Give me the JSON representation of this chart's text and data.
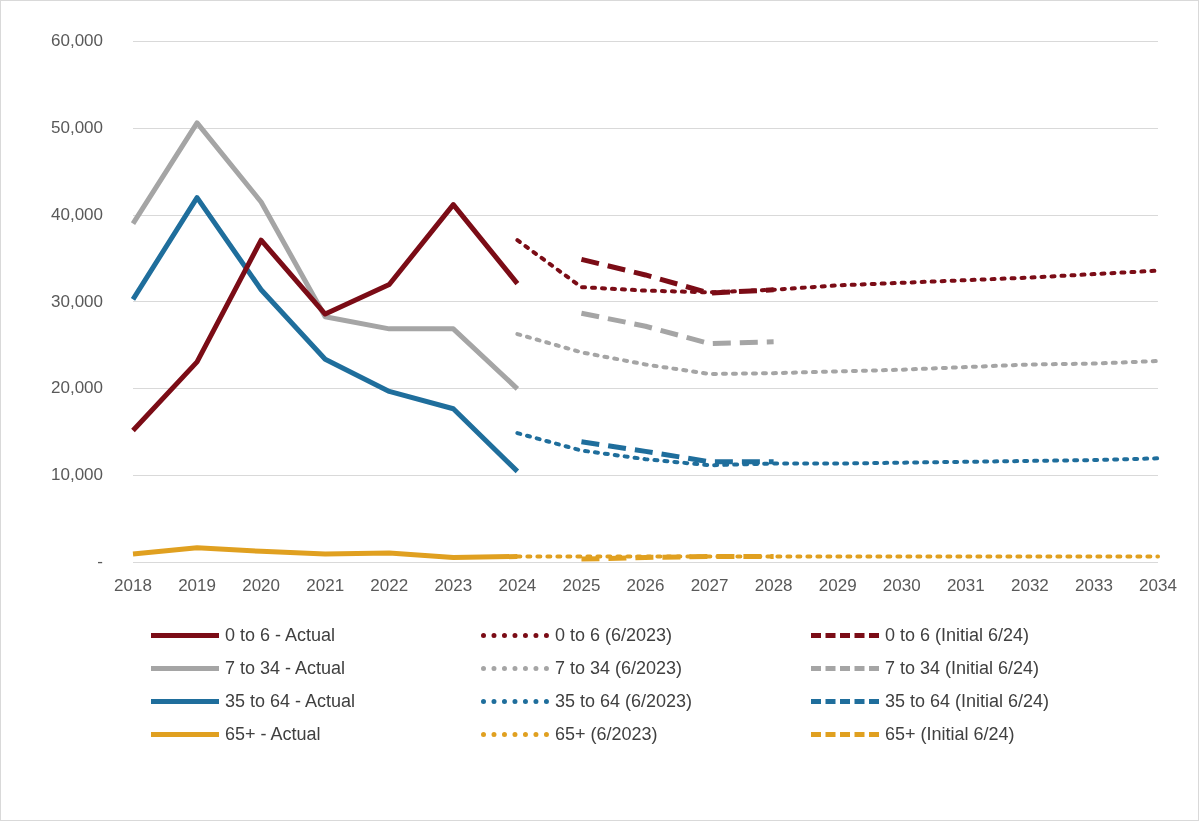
{
  "chart_data": {
    "type": "line",
    "categories": [
      "2018",
      "2019",
      "2020",
      "2021",
      "2022",
      "2023",
      "2024",
      "2025",
      "2026",
      "2027",
      "2028",
      "2029",
      "2030",
      "2031",
      "2032",
      "2033",
      "2034"
    ],
    "ylim": [
      0,
      60000
    ],
    "yticks": [
      {
        "value": 0,
        "label": "-"
      },
      {
        "value": 10000,
        "label": "10,000"
      },
      {
        "value": 20000,
        "label": "20,000"
      },
      {
        "value": 30000,
        "label": "30,000"
      },
      {
        "value": 40000,
        "label": "40,000"
      },
      {
        "value": 50000,
        "label": "50,000"
      },
      {
        "value": 60000,
        "label": "60,000"
      }
    ],
    "grid": "y",
    "legend": "bottom",
    "marker": "none",
    "series": [
      {
        "name": "0 to 6 - Actual",
        "color": "#7b0c16",
        "line_style": "solid",
        "values": [
          15200,
          23100,
          37100,
          28600,
          32000,
          41200,
          32100,
          null,
          null,
          null,
          null,
          null,
          null,
          null,
          null,
          null,
          null
        ]
      },
      {
        "name": "0 to 6 (6/2023)",
        "color": "#7b0c16",
        "line_style": "dotted",
        "values": [
          null,
          null,
          null,
          null,
          null,
          null,
          37100,
          31700,
          31300,
          31100,
          31400,
          31900,
          32200,
          32500,
          32800,
          33200,
          33600
        ]
      },
      {
        "name": "0 to 6 (Initial 6/24)",
        "color": "#7b0c16",
        "line_style": "dashed",
        "values": [
          null,
          null,
          null,
          null,
          null,
          null,
          null,
          34900,
          33100,
          31000,
          31400,
          null,
          null,
          null,
          null,
          null,
          null
        ]
      },
      {
        "name": "7 to 34 - Actual",
        "color": "#a5a5a5",
        "line_style": "solid",
        "values": [
          39000,
          50600,
          41500,
          28300,
          26900,
          26900,
          20000,
          null,
          null,
          null,
          null,
          null,
          null,
          null,
          null,
          null,
          null
        ]
      },
      {
        "name": "7 to 34 (6/2023)",
        "color": "#a5a5a5",
        "line_style": "dotted",
        "values": [
          null,
          null,
          null,
          null,
          null,
          null,
          26300,
          24200,
          22800,
          21700,
          21800,
          22000,
          22200,
          22500,
          22800,
          22900,
          23200
        ]
      },
      {
        "name": "7 to 34 (Initial 6/24)",
        "color": "#a5a5a5",
        "line_style": "dashed",
        "values": [
          null,
          null,
          null,
          null,
          null,
          null,
          null,
          28700,
          27200,
          25200,
          25400,
          null,
          null,
          null,
          null,
          null,
          null
        ]
      },
      {
        "name": "35 to 64 - Actual",
        "color": "#1f6e9c",
        "line_style": "solid",
        "values": [
          30300,
          42000,
          31400,
          23400,
          19700,
          17700,
          10500,
          null,
          null,
          null,
          null,
          null,
          null,
          null,
          null,
          null,
          null
        ]
      },
      {
        "name": "35 to 64 (6/2023)",
        "color": "#1f6e9c",
        "line_style": "dotted",
        "values": [
          null,
          null,
          null,
          null,
          null,
          null,
          14900,
          12900,
          11900,
          11200,
          11400,
          11400,
          11500,
          11600,
          11700,
          11800,
          12000
        ]
      },
      {
        "name": "35 to 64 (Initial 6/24)",
        "color": "#1f6e9c",
        "line_style": "dashed",
        "values": [
          null,
          null,
          null,
          null,
          null,
          null,
          null,
          13900,
          12800,
          11600,
          11600,
          null,
          null,
          null,
          null,
          null,
          null
        ]
      },
      {
        "name": "65+ - Actual",
        "color": "#e0a020",
        "line_style": "solid",
        "values": [
          1000,
          1700,
          1300,
          1000,
          1100,
          600,
          700,
          null,
          null,
          null,
          null,
          null,
          null,
          null,
          null,
          null,
          null
        ]
      },
      {
        "name": "65+ (6/2023)",
        "color": "#e0a020",
        "line_style": "dotted",
        "values": [
          null,
          null,
          null,
          null,
          null,
          null,
          700,
          700,
          700,
          700,
          700,
          700,
          700,
          700,
          700,
          700,
          700
        ]
      },
      {
        "name": "65+ (Initial 6/24)",
        "color": "#e0a020",
        "line_style": "dashed",
        "values": [
          null,
          null,
          null,
          null,
          null,
          null,
          null,
          400,
          600,
          700,
          700,
          null,
          null,
          null,
          null,
          null,
          null
        ]
      }
    ]
  }
}
